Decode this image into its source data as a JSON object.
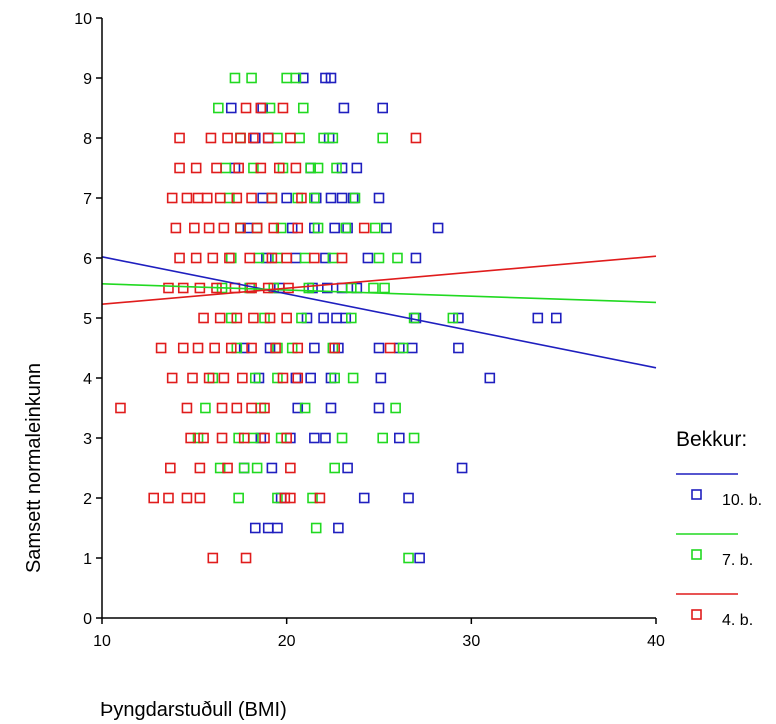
{
  "chart_data": {
    "type": "scatter",
    "title": "",
    "xlabel": "Þyngdarstuðull (BMI)",
    "ylabel": "Samsett normaleinkunn",
    "xlim": [
      10,
      40
    ],
    "ylim": [
      0,
      10
    ],
    "xticks": [
      "10",
      "20",
      "30",
      "40"
    ],
    "yticks": [
      "0",
      "1",
      "2",
      "3",
      "4",
      "5",
      "6",
      "7",
      "8",
      "9",
      "10"
    ],
    "grid": false,
    "legend": {
      "title": "Bekkur:",
      "position": "right",
      "entries": [
        "10. b.",
        "7. b.",
        "4. b."
      ]
    },
    "series": [
      {
        "name": "10. b.",
        "color": "#1f1fbf",
        "trend": [
          [
            10,
            6.02
          ],
          [
            40,
            4.17
          ]
        ],
        "points": [
          [
            20.9,
            9
          ],
          [
            22.1,
            9
          ],
          [
            22.4,
            9
          ],
          [
            17.0,
            8.5
          ],
          [
            18.7,
            8.5
          ],
          [
            23.1,
            8.5
          ],
          [
            25.2,
            8.5
          ],
          [
            18.3,
            8
          ],
          [
            19.0,
            8
          ],
          [
            22.3,
            8
          ],
          [
            17.2,
            7.5
          ],
          [
            21.3,
            7.5
          ],
          [
            23.0,
            7.5
          ],
          [
            23.8,
            7.5
          ],
          [
            18.7,
            7
          ],
          [
            20.0,
            7
          ],
          [
            21.6,
            7
          ],
          [
            22.4,
            7
          ],
          [
            23.0,
            7
          ],
          [
            23.6,
            7
          ],
          [
            25.0,
            7
          ],
          [
            17.9,
            6.5
          ],
          [
            20.3,
            6.5
          ],
          [
            21.5,
            6.5
          ],
          [
            22.6,
            6.5
          ],
          [
            23.3,
            6.5
          ],
          [
            25.4,
            6.5
          ],
          [
            28.2,
            6.5
          ],
          [
            18.9,
            6
          ],
          [
            20.5,
            6
          ],
          [
            22.1,
            6
          ],
          [
            24.4,
            6
          ],
          [
            27.0,
            6
          ],
          [
            19.6,
            5.5
          ],
          [
            21.4,
            5.5
          ],
          [
            22.2,
            5.5
          ],
          [
            23.0,
            5.5
          ],
          [
            23.8,
            5.5
          ],
          [
            21.1,
            5
          ],
          [
            22.0,
            5
          ],
          [
            22.7,
            5
          ],
          [
            23.2,
            5
          ],
          [
            27.0,
            5
          ],
          [
            29.3,
            5
          ],
          [
            33.6,
            5
          ],
          [
            34.6,
            5
          ],
          [
            17.7,
            4.5
          ],
          [
            19.1,
            4.5
          ],
          [
            21.5,
            4.5
          ],
          [
            22.8,
            4.5
          ],
          [
            25.0,
            4.5
          ],
          [
            26.1,
            4.5
          ],
          [
            26.8,
            4.5
          ],
          [
            29.3,
            4.5
          ],
          [
            18.5,
            4
          ],
          [
            20.5,
            4
          ],
          [
            21.3,
            4
          ],
          [
            22.4,
            4
          ],
          [
            25.1,
            4
          ],
          [
            31.0,
            4
          ],
          [
            20.6,
            3.5
          ],
          [
            22.4,
            3.5
          ],
          [
            25.0,
            3.5
          ],
          [
            18.6,
            3
          ],
          [
            20.2,
            3
          ],
          [
            21.5,
            3
          ],
          [
            22.1,
            3
          ],
          [
            26.1,
            3
          ],
          [
            17.7,
            2.5
          ],
          [
            19.2,
            2.5
          ],
          [
            23.3,
            2.5
          ],
          [
            29.5,
            2.5
          ],
          [
            19.7,
            2
          ],
          [
            24.2,
            2
          ],
          [
            26.6,
            2
          ],
          [
            18.3,
            1.5
          ],
          [
            19.0,
            1.5
          ],
          [
            19.5,
            1.5
          ],
          [
            22.8,
            1.5
          ],
          [
            27.2,
            1
          ]
        ]
      },
      {
        "name": "7. b.",
        "color": "#21d921",
        "trend": [
          [
            10,
            5.57
          ],
          [
            40,
            5.26
          ]
        ],
        "points": [
          [
            17.2,
            9
          ],
          [
            18.1,
            9
          ],
          [
            20.0,
            9
          ],
          [
            20.5,
            9
          ],
          [
            16.3,
            8.5
          ],
          [
            19.1,
            8.5
          ],
          [
            20.9,
            8.5
          ],
          [
            17.5,
            8
          ],
          [
            19.5,
            8
          ],
          [
            20.7,
            8
          ],
          [
            22.0,
            8
          ],
          [
            22.5,
            8
          ],
          [
            25.2,
            8
          ],
          [
            16.7,
            7.5
          ],
          [
            18.2,
            7.5
          ],
          [
            19.8,
            7.5
          ],
          [
            21.3,
            7.5
          ],
          [
            21.7,
            7.5
          ],
          [
            22.7,
            7.5
          ],
          [
            16.9,
            7
          ],
          [
            19.2,
            7
          ],
          [
            20.6,
            7
          ],
          [
            21.5,
            7
          ],
          [
            23.7,
            7
          ],
          [
            17.5,
            6.5
          ],
          [
            18.4,
            6.5
          ],
          [
            19.7,
            6.5
          ],
          [
            21.7,
            6.5
          ],
          [
            23.2,
            6.5
          ],
          [
            24.8,
            6.5
          ],
          [
            17.0,
            6
          ],
          [
            18.5,
            6
          ],
          [
            19.5,
            6
          ],
          [
            21.0,
            6
          ],
          [
            22.5,
            6
          ],
          [
            25.0,
            6
          ],
          [
            26.0,
            6
          ],
          [
            16.5,
            5.5
          ],
          [
            18.0,
            5.5
          ],
          [
            19.3,
            5.5
          ],
          [
            21.2,
            5.5
          ],
          [
            23.5,
            5.5
          ],
          [
            24.7,
            5.5
          ],
          [
            25.3,
            5.5
          ],
          [
            17.0,
            5
          ],
          [
            18.8,
            5
          ],
          [
            20.8,
            5
          ],
          [
            23.5,
            5
          ],
          [
            26.9,
            5
          ],
          [
            29.0,
            5
          ],
          [
            17.3,
            4.5
          ],
          [
            19.5,
            4.5
          ],
          [
            20.3,
            4.5
          ],
          [
            22.5,
            4.5
          ],
          [
            26.3,
            4.5
          ],
          [
            16.0,
            4
          ],
          [
            18.3,
            4
          ],
          [
            19.5,
            4
          ],
          [
            22.6,
            4
          ],
          [
            23.6,
            4
          ],
          [
            15.6,
            3.5
          ],
          [
            18.6,
            3.5
          ],
          [
            21.0,
            3.5
          ],
          [
            25.9,
            3.5
          ],
          [
            15.2,
            3
          ],
          [
            17.4,
            3
          ],
          [
            18.2,
            3
          ],
          [
            19.7,
            3
          ],
          [
            23.0,
            3
          ],
          [
            25.2,
            3
          ],
          [
            26.9,
            3
          ],
          [
            16.4,
            2.5
          ],
          [
            17.7,
            2.5
          ],
          [
            18.4,
            2.5
          ],
          [
            22.6,
            2.5
          ],
          [
            17.4,
            2
          ],
          [
            19.5,
            2
          ],
          [
            21.4,
            2
          ],
          [
            21.6,
            1.5
          ],
          [
            26.6,
            1
          ]
        ]
      },
      {
        "name": "4. b.",
        "color": "#e01c1c",
        "trend": [
          [
            10,
            5.23
          ],
          [
            40,
            6.03
          ]
        ],
        "points": [
          [
            17.8,
            8.5
          ],
          [
            18.6,
            8.5
          ],
          [
            19.8,
            8.5
          ],
          [
            14.2,
            8
          ],
          [
            15.9,
            8
          ],
          [
            16.8,
            8
          ],
          [
            17.5,
            8
          ],
          [
            18.2,
            8
          ],
          [
            19.0,
            8
          ],
          [
            20.2,
            8
          ],
          [
            27.0,
            8
          ],
          [
            14.2,
            7.5
          ],
          [
            15.1,
            7.5
          ],
          [
            16.2,
            7.5
          ],
          [
            17.4,
            7.5
          ],
          [
            18.6,
            7.5
          ],
          [
            19.6,
            7.5
          ],
          [
            20.5,
            7.5
          ],
          [
            13.8,
            7
          ],
          [
            14.6,
            7
          ],
          [
            15.2,
            7
          ],
          [
            15.7,
            7
          ],
          [
            16.4,
            7
          ],
          [
            17.3,
            7
          ],
          [
            18.1,
            7
          ],
          [
            19.2,
            7
          ],
          [
            20.8,
            7
          ],
          [
            14.0,
            6.5
          ],
          [
            15.0,
            6.5
          ],
          [
            15.8,
            6.5
          ],
          [
            16.6,
            6.5
          ],
          [
            17.5,
            6.5
          ],
          [
            18.4,
            6.5
          ],
          [
            19.3,
            6.5
          ],
          [
            20.6,
            6.5
          ],
          [
            24.2,
            6.5
          ],
          [
            14.2,
            6
          ],
          [
            15.1,
            6
          ],
          [
            16.0,
            6
          ],
          [
            16.9,
            6
          ],
          [
            18.0,
            6
          ],
          [
            19.2,
            6
          ],
          [
            20.0,
            6
          ],
          [
            21.5,
            6
          ],
          [
            23.0,
            6
          ],
          [
            13.6,
            5.5
          ],
          [
            14.4,
            5.5
          ],
          [
            15.3,
            5.5
          ],
          [
            16.2,
            5.5
          ],
          [
            17.2,
            5.5
          ],
          [
            18.1,
            5.5
          ],
          [
            19.0,
            5.5
          ],
          [
            20.1,
            5.5
          ],
          [
            15.5,
            5
          ],
          [
            16.4,
            5
          ],
          [
            17.3,
            5
          ],
          [
            18.2,
            5
          ],
          [
            19.1,
            5
          ],
          [
            20.0,
            5
          ],
          [
            13.2,
            4.5
          ],
          [
            14.4,
            4.5
          ],
          [
            15.2,
            4.5
          ],
          [
            16.1,
            4.5
          ],
          [
            17.0,
            4.5
          ],
          [
            18.1,
            4.5
          ],
          [
            19.4,
            4.5
          ],
          [
            20.6,
            4.5
          ],
          [
            22.6,
            4.5
          ],
          [
            25.6,
            4.5
          ],
          [
            13.8,
            4
          ],
          [
            14.9,
            4
          ],
          [
            15.8,
            4
          ],
          [
            16.6,
            4
          ],
          [
            17.6,
            4
          ],
          [
            19.8,
            4
          ],
          [
            20.6,
            4
          ],
          [
            11.0,
            3.5
          ],
          [
            14.6,
            3.5
          ],
          [
            16.5,
            3.5
          ],
          [
            17.3,
            3.5
          ],
          [
            18.1,
            3.5
          ],
          [
            18.8,
            3.5
          ],
          [
            14.8,
            3
          ],
          [
            15.5,
            3
          ],
          [
            16.5,
            3
          ],
          [
            17.7,
            3
          ],
          [
            18.8,
            3
          ],
          [
            20.0,
            3
          ],
          [
            13.7,
            2.5
          ],
          [
            15.3,
            2.5
          ],
          [
            16.8,
            2.5
          ],
          [
            20.2,
            2.5
          ],
          [
            12.8,
            2
          ],
          [
            13.6,
            2
          ],
          [
            14.6,
            2
          ],
          [
            15.3,
            2
          ],
          [
            19.9,
            2
          ],
          [
            20.2,
            2
          ],
          [
            21.8,
            2
          ],
          [
            16.0,
            1
          ],
          [
            17.8,
            1
          ]
        ]
      }
    ]
  }
}
